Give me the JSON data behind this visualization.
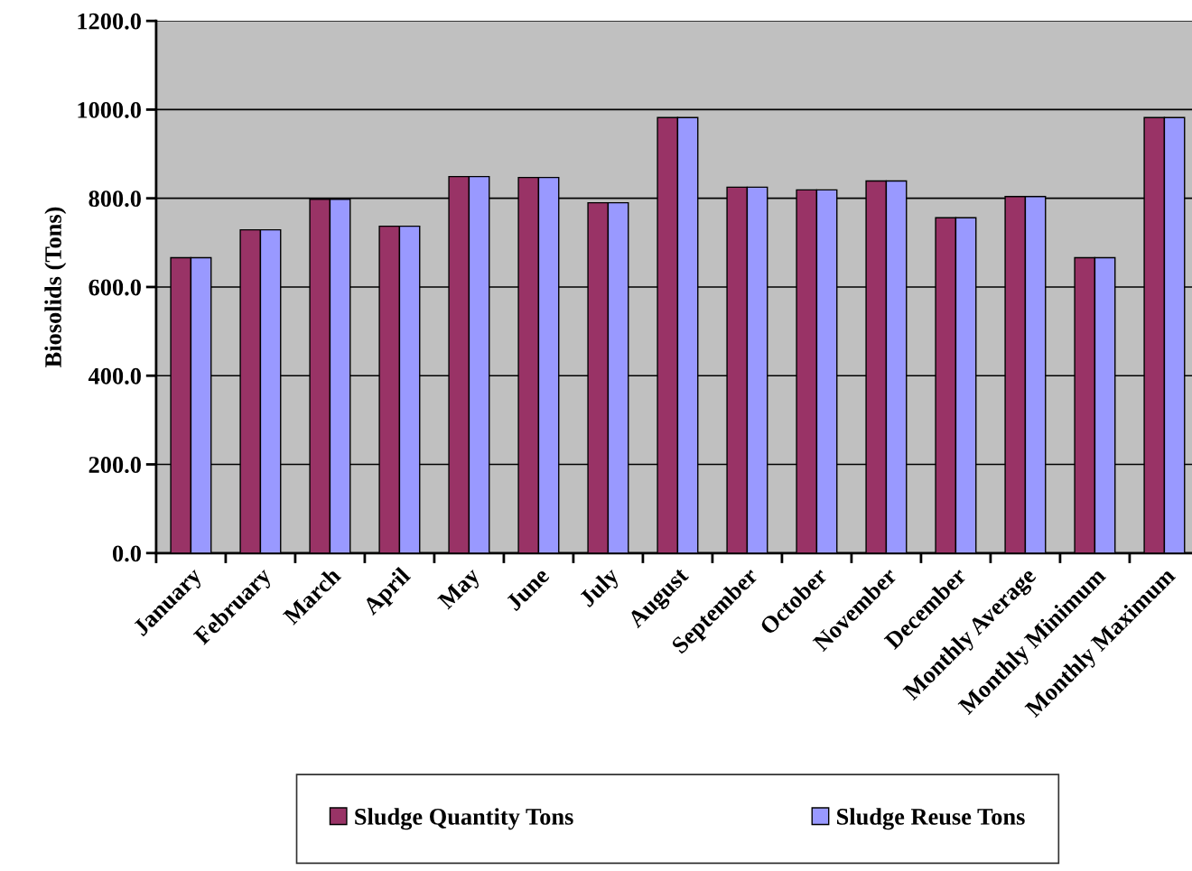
{
  "chart_data": {
    "type": "bar",
    "ylabel": "Biosolids (Tons)",
    "categories": [
      "January",
      "February",
      "March",
      "April",
      "May",
      "June",
      "July",
      "August",
      "September",
      "October",
      "November",
      "December",
      "Monthly Average",
      "Monthly Minimum",
      "Monthly Maximum"
    ],
    "series": [
      {
        "name": "Sludge Quantity Tons",
        "color": "#993366",
        "values": [
          666,
          729,
          798,
          737,
          849,
          847,
          790,
          982,
          825,
          819,
          839,
          756,
          804,
          666,
          982
        ]
      },
      {
        "name": "Sludge Reuse Tons",
        "color": "#9999ff",
        "values": [
          666,
          729,
          798,
          737,
          849,
          847,
          790,
          982,
          825,
          819,
          839,
          756,
          804,
          666,
          982
        ]
      }
    ],
    "ylim": [
      0,
      1200
    ],
    "yticks": [
      {
        "value": 0,
        "label": "0.0"
      },
      {
        "value": 200,
        "label": "200.0"
      },
      {
        "value": 400,
        "label": "400.0"
      },
      {
        "value": 600,
        "label": "600.0"
      },
      {
        "value": 800,
        "label": "800.0"
      },
      {
        "value": 1000,
        "label": "1000.0"
      },
      {
        "value": 1200,
        "label": "1200.0"
      }
    ],
    "grid": "y",
    "legend": "bottom"
  }
}
